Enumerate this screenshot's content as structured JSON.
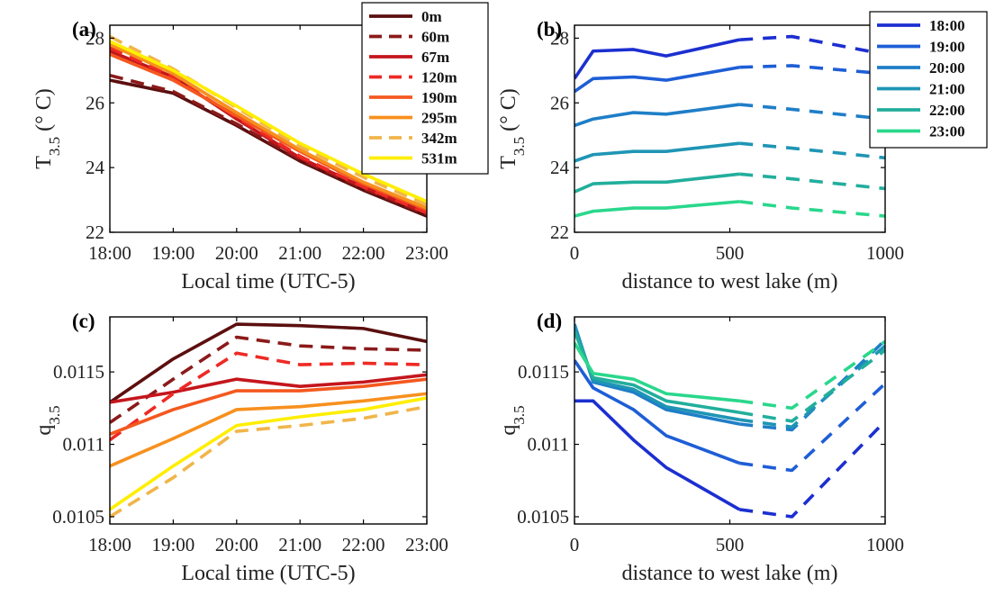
{
  "chart_data": [
    {
      "panel": "(a)",
      "type": "line",
      "xlabel": "Local time (UTC-5)",
      "ylabel_main": "T",
      "ylabel_sub": "3.5",
      "ylabel_unit": " (° C)",
      "categories": [
        "18:00",
        "19:00",
        "20:00",
        "21:00",
        "22:00",
        "23:00"
      ],
      "ylim": [
        22,
        28.4
      ],
      "yticks": [
        22,
        24,
        26,
        28
      ],
      "ytick_labels": [
        "22",
        "24",
        "26",
        "28"
      ],
      "legend": "top-right",
      "series": [
        {
          "name": "0m",
          "color": "#5c0f0f",
          "dash": "solid",
          "values": [
            26.7,
            26.3,
            25.3,
            24.2,
            23.3,
            22.5
          ]
        },
        {
          "name": "60m",
          "color": "#8b1a1a",
          "dash": "dashed",
          "values": [
            26.85,
            26.35,
            25.35,
            24.25,
            23.35,
            22.55
          ]
        },
        {
          "name": "67m",
          "color": "#c4161c",
          "dash": "solid",
          "values": [
            27.6,
            26.8,
            25.5,
            24.3,
            23.4,
            22.6
          ]
        },
        {
          "name": "120m",
          "color": "#ee2a24",
          "dash": "dashed",
          "values": [
            27.7,
            26.8,
            25.55,
            24.35,
            23.4,
            22.6
          ]
        },
        {
          "name": "190m",
          "color": "#f4581f",
          "dash": "solid",
          "values": [
            27.5,
            26.7,
            25.6,
            24.5,
            23.5,
            22.7
          ]
        },
        {
          "name": "295m",
          "color": "#f7901e",
          "dash": "solid",
          "values": [
            27.8,
            26.9,
            25.7,
            24.55,
            23.55,
            22.75
          ]
        },
        {
          "name": "342m",
          "color": "#f0b54a",
          "dash": "dashed",
          "values": [
            28.05,
            27.05,
            25.85,
            24.65,
            23.7,
            22.85
          ]
        },
        {
          "name": "531m",
          "color": "#ffee00",
          "dash": "solid",
          "values": [
            27.9,
            27.0,
            25.9,
            24.75,
            23.8,
            22.95
          ]
        }
      ]
    },
    {
      "panel": "(b)",
      "type": "line",
      "xlabel": "distance to west lake (m)",
      "ylabel_main": "T",
      "ylabel_sub": "3.5",
      "ylabel_unit": " (° C)",
      "xlim": [
        0,
        1000
      ],
      "xticks": [
        0,
        500,
        1000
      ],
      "xtick_labels": [
        "0",
        "500",
        "1000"
      ],
      "ylim": [
        22,
        28.4
      ],
      "yticks": [
        22,
        24,
        26,
        28
      ],
      "ytick_labels": [
        "22",
        "24",
        "26",
        "28"
      ],
      "legend": "top-right",
      "solid_x": [
        0,
        60,
        190,
        295,
        531
      ],
      "dashed_x": [
        531,
        700,
        1000
      ],
      "series": [
        {
          "name": "18:00",
          "color": "#1c2fd0",
          "solid": [
            26.75,
            27.6,
            27.65,
            27.45,
            27.95
          ],
          "dashed": [
            27.95,
            28.05,
            27.5
          ]
        },
        {
          "name": "19:00",
          "color": "#1e5ed6",
          "solid": [
            26.35,
            26.75,
            26.8,
            26.7,
            27.1
          ],
          "dashed": [
            27.1,
            27.15,
            26.9
          ]
        },
        {
          "name": "20:00",
          "color": "#1f7ec7",
          "solid": [
            25.3,
            25.5,
            25.7,
            25.65,
            25.95
          ],
          "dashed": [
            25.95,
            25.8,
            25.5
          ]
        },
        {
          "name": "21:00",
          "color": "#1f95b5",
          "solid": [
            24.2,
            24.4,
            24.5,
            24.5,
            24.75
          ],
          "dashed": [
            24.75,
            24.6,
            24.3
          ]
        },
        {
          "name": "22:00",
          "color": "#22ae9c",
          "solid": [
            23.25,
            23.5,
            23.55,
            23.55,
            23.8
          ],
          "dashed": [
            23.8,
            23.65,
            23.35
          ]
        },
        {
          "name": "23:00",
          "color": "#2ad78c",
          "solid": [
            22.5,
            22.65,
            22.75,
            22.75,
            22.95
          ],
          "dashed": [
            22.95,
            22.75,
            22.5
          ]
        }
      ]
    },
    {
      "panel": "(c)",
      "type": "line",
      "xlabel": "Local time (UTC-5)",
      "ylabel_main": "q",
      "ylabel_sub": "3.5",
      "ylabel_unit": "",
      "categories": [
        "18:00",
        "19:00",
        "20:00",
        "21:00",
        "22:00",
        "23:00"
      ],
      "ylim": [
        0.01045,
        0.01188
      ],
      "yticks": [
        0.0105,
        0.011,
        0.0115
      ],
      "ytick_labels": [
        "0.0105",
        "0.011",
        "0.0115"
      ],
      "series": [
        {
          "name": "0m",
          "color": "#5c0f0f",
          "dash": "solid",
          "values": [
            0.01129,
            0.01159,
            0.01183,
            0.01182,
            0.0118,
            0.01171
          ]
        },
        {
          "name": "60m",
          "color": "#8b1a1a",
          "dash": "dashed",
          "values": [
            0.01115,
            0.01145,
            0.01174,
            0.01168,
            0.01166,
            0.01165
          ]
        },
        {
          "name": "67m",
          "color": "#c4161c",
          "dash": "solid",
          "values": [
            0.01129,
            0.01136,
            0.01145,
            0.0114,
            0.01143,
            0.01148
          ]
        },
        {
          "name": "120m",
          "color": "#ee2a24",
          "dash": "dashed",
          "values": [
            0.01103,
            0.01135,
            0.01163,
            0.01155,
            0.01156,
            0.01155
          ]
        },
        {
          "name": "190m",
          "color": "#f4581f",
          "dash": "solid",
          "values": [
            0.01107,
            0.01124,
            0.01137,
            0.01137,
            0.0114,
            0.01145
          ]
        },
        {
          "name": "295m",
          "color": "#f7901e",
          "dash": "solid",
          "values": [
            0.01085,
            0.01104,
            0.01124,
            0.01126,
            0.0113,
            0.01135
          ]
        },
        {
          "name": "342m",
          "color": "#f0b54a",
          "dash": "dashed",
          "values": [
            0.0105,
            0.01077,
            0.01109,
            0.01113,
            0.01118,
            0.01126
          ]
        },
        {
          "name": "531m",
          "color": "#ffee00",
          "dash": "solid",
          "values": [
            0.01055,
            0.01085,
            0.01113,
            0.01119,
            0.01124,
            0.01132
          ]
        }
      ]
    },
    {
      "panel": "(d)",
      "type": "line",
      "xlabel": "distance to west lake (m)",
      "ylabel_main": "q",
      "ylabel_sub": "3.5",
      "ylabel_unit": "",
      "xlim": [
        0,
        1000
      ],
      "xticks": [
        0,
        500,
        1000
      ],
      "xtick_labels": [
        "0",
        "500",
        "1000"
      ],
      "ylim": [
        0.01045,
        0.01188
      ],
      "yticks": [
        0.0105,
        0.011,
        0.0115
      ],
      "ytick_labels": [
        "0.0105",
        "0.011",
        "0.0115"
      ],
      "solid_x": [
        0,
        60,
        190,
        295,
        531
      ],
      "dashed_x": [
        531,
        700,
        1000
      ],
      "series": [
        {
          "name": "18:00",
          "color": "#1c2fd0",
          "solid": [
            0.0113,
            0.0113,
            0.01103,
            0.01084,
            0.01055
          ],
          "dashed": [
            0.01055,
            0.0105,
            0.01116
          ]
        },
        {
          "name": "19:00",
          "color": "#1e5ed6",
          "solid": [
            0.01158,
            0.01139,
            0.01124,
            0.01106,
            0.01087
          ],
          "dashed": [
            0.01087,
            0.01082,
            0.01142
          ]
        },
        {
          "name": "20:00",
          "color": "#1f7ec7",
          "solid": [
            0.01183,
            0.01143,
            0.01136,
            0.01124,
            0.01114
          ],
          "dashed": [
            0.01114,
            0.0111,
            0.01172
          ]
        },
        {
          "name": "21:00",
          "color": "#1f95b5",
          "solid": [
            0.01182,
            0.01144,
            0.01138,
            0.01126,
            0.01117
          ],
          "dashed": [
            0.01117,
            0.01112,
            0.01168
          ]
        },
        {
          "name": "22:00",
          "color": "#22ae9c",
          "solid": [
            0.01178,
            0.01146,
            0.01141,
            0.0113,
            0.01122
          ],
          "dashed": [
            0.01122,
            0.01116,
            0.01165
          ]
        },
        {
          "name": "23:00",
          "color": "#2ad78c",
          "solid": [
            0.0117,
            0.01149,
            0.01145,
            0.01135,
            0.0113
          ],
          "dashed": [
            0.0113,
            0.01125,
            0.01171
          ]
        }
      ]
    }
  ]
}
